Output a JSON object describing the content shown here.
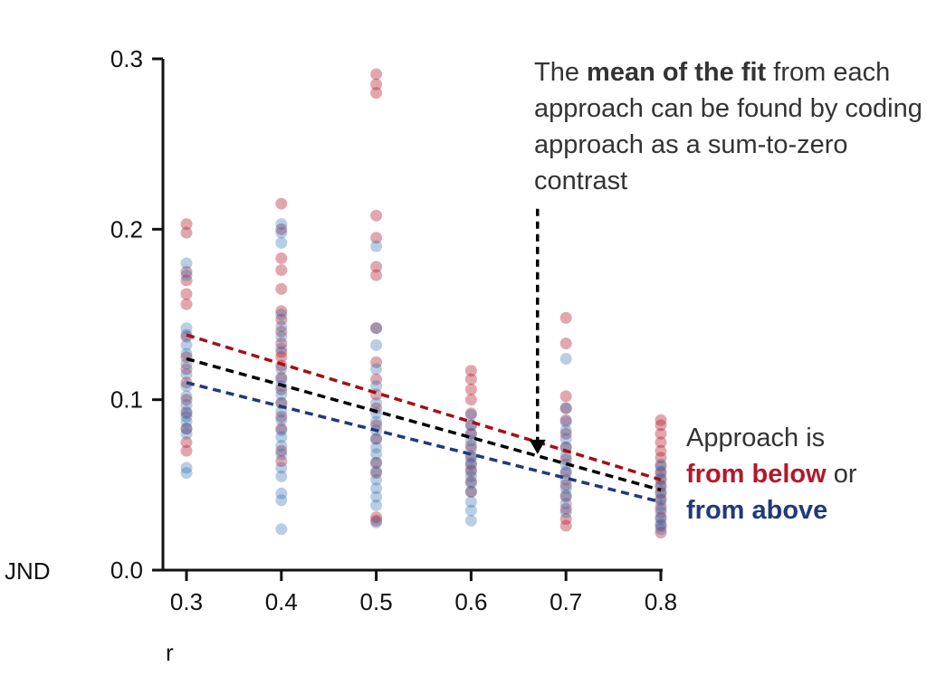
{
  "chart_data": {
    "type": "scatter",
    "xlabel": "r",
    "ylabel": "JND",
    "xlim": [
      0.3,
      0.8
    ],
    "ylim": [
      0,
      0.3
    ],
    "x_ticks": [
      0.3,
      0.4,
      0.5,
      0.6,
      0.7,
      0.8
    ],
    "x_tick_labels": [
      "0.3",
      "0.4",
      "0.5",
      "0.6",
      "0.7",
      "0.8"
    ],
    "y_ticks": [
      0,
      0.1,
      0.2,
      0.3
    ],
    "y_tick_labels": [
      "0.0",
      "0.1",
      "0.2",
      "0.3"
    ],
    "grid": false,
    "series": [
      {
        "name": "from below",
        "color": "#b2182b",
        "points": [
          {
            "x": 0.3,
            "y": 0.203
          },
          {
            "x": 0.3,
            "y": 0.198
          },
          {
            "x": 0.3,
            "y": 0.175
          },
          {
            "x": 0.3,
            "y": 0.17
          },
          {
            "x": 0.3,
            "y": 0.162
          },
          {
            "x": 0.3,
            "y": 0.156
          },
          {
            "x": 0.3,
            "y": 0.137
          },
          {
            "x": 0.3,
            "y": 0.125
          },
          {
            "x": 0.3,
            "y": 0.118
          },
          {
            "x": 0.3,
            "y": 0.11
          },
          {
            "x": 0.3,
            "y": 0.1
          },
          {
            "x": 0.3,
            "y": 0.092
          },
          {
            "x": 0.3,
            "y": 0.083
          },
          {
            "x": 0.3,
            "y": 0.075
          },
          {
            "x": 0.3,
            "y": 0.07
          },
          {
            "x": 0.4,
            "y": 0.215
          },
          {
            "x": 0.4,
            "y": 0.2
          },
          {
            "x": 0.4,
            "y": 0.183
          },
          {
            "x": 0.4,
            "y": 0.176
          },
          {
            "x": 0.4,
            "y": 0.165
          },
          {
            "x": 0.4,
            "y": 0.152
          },
          {
            "x": 0.4,
            "y": 0.147
          },
          {
            "x": 0.4,
            "y": 0.14
          },
          {
            "x": 0.4,
            "y": 0.133
          },
          {
            "x": 0.4,
            "y": 0.128
          },
          {
            "x": 0.4,
            "y": 0.125
          },
          {
            "x": 0.4,
            "y": 0.12
          },
          {
            "x": 0.4,
            "y": 0.113
          },
          {
            "x": 0.4,
            "y": 0.106
          },
          {
            "x": 0.4,
            "y": 0.098
          },
          {
            "x": 0.4,
            "y": 0.09
          },
          {
            "x": 0.4,
            "y": 0.083
          },
          {
            "x": 0.4,
            "y": 0.07
          },
          {
            "x": 0.4,
            "y": 0.064
          },
          {
            "x": 0.5,
            "y": 0.291
          },
          {
            "x": 0.5,
            "y": 0.285
          },
          {
            "x": 0.5,
            "y": 0.28
          },
          {
            "x": 0.5,
            "y": 0.208
          },
          {
            "x": 0.5,
            "y": 0.195
          },
          {
            "x": 0.5,
            "y": 0.178
          },
          {
            "x": 0.5,
            "y": 0.173
          },
          {
            "x": 0.5,
            "y": 0.142
          },
          {
            "x": 0.5,
            "y": 0.122
          },
          {
            "x": 0.5,
            "y": 0.112
          },
          {
            "x": 0.5,
            "y": 0.103
          },
          {
            "x": 0.5,
            "y": 0.095
          },
          {
            "x": 0.5,
            "y": 0.085
          },
          {
            "x": 0.5,
            "y": 0.077
          },
          {
            "x": 0.5,
            "y": 0.063
          },
          {
            "x": 0.5,
            "y": 0.057
          },
          {
            "x": 0.5,
            "y": 0.031
          },
          {
            "x": 0.5,
            "y": 0.029
          },
          {
            "x": 0.6,
            "y": 0.117
          },
          {
            "x": 0.6,
            "y": 0.112
          },
          {
            "x": 0.6,
            "y": 0.106
          },
          {
            "x": 0.6,
            "y": 0.1
          },
          {
            "x": 0.6,
            "y": 0.092
          },
          {
            "x": 0.6,
            "y": 0.085
          },
          {
            "x": 0.6,
            "y": 0.08
          },
          {
            "x": 0.6,
            "y": 0.073
          },
          {
            "x": 0.6,
            "y": 0.067
          },
          {
            "x": 0.6,
            "y": 0.062
          },
          {
            "x": 0.6,
            "y": 0.058
          },
          {
            "x": 0.6,
            "y": 0.052
          },
          {
            "x": 0.6,
            "y": 0.046
          },
          {
            "x": 0.7,
            "y": 0.148
          },
          {
            "x": 0.7,
            "y": 0.133
          },
          {
            "x": 0.7,
            "y": 0.102
          },
          {
            "x": 0.7,
            "y": 0.095
          },
          {
            "x": 0.7,
            "y": 0.088
          },
          {
            "x": 0.7,
            "y": 0.08
          },
          {
            "x": 0.7,
            "y": 0.072
          },
          {
            "x": 0.7,
            "y": 0.065
          },
          {
            "x": 0.7,
            "y": 0.057
          },
          {
            "x": 0.7,
            "y": 0.05
          },
          {
            "x": 0.7,
            "y": 0.043
          },
          {
            "x": 0.7,
            "y": 0.036
          },
          {
            "x": 0.7,
            "y": 0.03
          },
          {
            "x": 0.7,
            "y": 0.026
          },
          {
            "x": 0.8,
            "y": 0.088
          },
          {
            "x": 0.8,
            "y": 0.085
          },
          {
            "x": 0.8,
            "y": 0.08
          },
          {
            "x": 0.8,
            "y": 0.075
          },
          {
            "x": 0.8,
            "y": 0.07
          },
          {
            "x": 0.8,
            "y": 0.066
          },
          {
            "x": 0.8,
            "y": 0.061
          },
          {
            "x": 0.8,
            "y": 0.057
          },
          {
            "x": 0.8,
            "y": 0.053
          },
          {
            "x": 0.8,
            "y": 0.049
          },
          {
            "x": 0.8,
            "y": 0.045
          },
          {
            "x": 0.8,
            "y": 0.041
          },
          {
            "x": 0.8,
            "y": 0.036
          },
          {
            "x": 0.8,
            "y": 0.031
          },
          {
            "x": 0.8,
            "y": 0.026
          },
          {
            "x": 0.8,
            "y": 0.022
          }
        ],
        "fit": [
          {
            "x": 0.3,
            "y": 0.138
          },
          {
            "x": 0.8,
            "y": 0.053
          }
        ]
      },
      {
        "name": "from above",
        "color": "#2166ac",
        "points": [
          {
            "x": 0.3,
            "y": 0.18
          },
          {
            "x": 0.3,
            "y": 0.173
          },
          {
            "x": 0.3,
            "y": 0.142
          },
          {
            "x": 0.3,
            "y": 0.138
          },
          {
            "x": 0.3,
            "y": 0.132
          },
          {
            "x": 0.3,
            "y": 0.127
          },
          {
            "x": 0.3,
            "y": 0.121
          },
          {
            "x": 0.3,
            "y": 0.115
          },
          {
            "x": 0.3,
            "y": 0.108
          },
          {
            "x": 0.3,
            "y": 0.102
          },
          {
            "x": 0.3,
            "y": 0.097
          },
          {
            "x": 0.3,
            "y": 0.093
          },
          {
            "x": 0.3,
            "y": 0.09
          },
          {
            "x": 0.3,
            "y": 0.087
          },
          {
            "x": 0.3,
            "y": 0.083
          },
          {
            "x": 0.3,
            "y": 0.08
          },
          {
            "x": 0.3,
            "y": 0.06
          },
          {
            "x": 0.3,
            "y": 0.057
          },
          {
            "x": 0.4,
            "y": 0.203
          },
          {
            "x": 0.4,
            "y": 0.198
          },
          {
            "x": 0.4,
            "y": 0.192
          },
          {
            "x": 0.4,
            "y": 0.15
          },
          {
            "x": 0.4,
            "y": 0.143
          },
          {
            "x": 0.4,
            "y": 0.137
          },
          {
            "x": 0.4,
            "y": 0.13
          },
          {
            "x": 0.4,
            "y": 0.118
          },
          {
            "x": 0.4,
            "y": 0.112
          },
          {
            "x": 0.4,
            "y": 0.108
          },
          {
            "x": 0.4,
            "y": 0.103
          },
          {
            "x": 0.4,
            "y": 0.098
          },
          {
            "x": 0.4,
            "y": 0.093
          },
          {
            "x": 0.4,
            "y": 0.088
          },
          {
            "x": 0.4,
            "y": 0.082
          },
          {
            "x": 0.4,
            "y": 0.078
          },
          {
            "x": 0.4,
            "y": 0.073
          },
          {
            "x": 0.4,
            "y": 0.068
          },
          {
            "x": 0.4,
            "y": 0.06
          },
          {
            "x": 0.4,
            "y": 0.055
          },
          {
            "x": 0.4,
            "y": 0.045
          },
          {
            "x": 0.4,
            "y": 0.041
          },
          {
            "x": 0.4,
            "y": 0.024
          },
          {
            "x": 0.5,
            "y": 0.19
          },
          {
            "x": 0.5,
            "y": 0.142
          },
          {
            "x": 0.5,
            "y": 0.132
          },
          {
            "x": 0.5,
            "y": 0.118
          },
          {
            "x": 0.5,
            "y": 0.108
          },
          {
            "x": 0.5,
            "y": 0.098
          },
          {
            "x": 0.5,
            "y": 0.092
          },
          {
            "x": 0.5,
            "y": 0.087
          },
          {
            "x": 0.5,
            "y": 0.082
          },
          {
            "x": 0.5,
            "y": 0.077
          },
          {
            "x": 0.5,
            "y": 0.072
          },
          {
            "x": 0.5,
            "y": 0.068
          },
          {
            "x": 0.5,
            "y": 0.063
          },
          {
            "x": 0.5,
            "y": 0.058
          },
          {
            "x": 0.5,
            "y": 0.053
          },
          {
            "x": 0.5,
            "y": 0.048
          },
          {
            "x": 0.5,
            "y": 0.043
          },
          {
            "x": 0.5,
            "y": 0.038
          },
          {
            "x": 0.5,
            "y": 0.028
          },
          {
            "x": 0.6,
            "y": 0.091
          },
          {
            "x": 0.6,
            "y": 0.085
          },
          {
            "x": 0.6,
            "y": 0.08
          },
          {
            "x": 0.6,
            "y": 0.076
          },
          {
            "x": 0.6,
            "y": 0.071
          },
          {
            "x": 0.6,
            "y": 0.066
          },
          {
            "x": 0.6,
            "y": 0.063
          },
          {
            "x": 0.6,
            "y": 0.059
          },
          {
            "x": 0.6,
            "y": 0.055
          },
          {
            "x": 0.6,
            "y": 0.051
          },
          {
            "x": 0.6,
            "y": 0.046
          },
          {
            "x": 0.6,
            "y": 0.04
          },
          {
            "x": 0.6,
            "y": 0.035
          },
          {
            "x": 0.6,
            "y": 0.029
          },
          {
            "x": 0.7,
            "y": 0.124
          },
          {
            "x": 0.7,
            "y": 0.095
          },
          {
            "x": 0.7,
            "y": 0.087
          },
          {
            "x": 0.7,
            "y": 0.082
          },
          {
            "x": 0.7,
            "y": 0.077
          },
          {
            "x": 0.7,
            "y": 0.072
          },
          {
            "x": 0.7,
            "y": 0.067
          },
          {
            "x": 0.7,
            "y": 0.062
          },
          {
            "x": 0.7,
            "y": 0.058
          },
          {
            "x": 0.7,
            "y": 0.053
          },
          {
            "x": 0.7,
            "y": 0.048
          },
          {
            "x": 0.7,
            "y": 0.044
          },
          {
            "x": 0.7,
            "y": 0.039
          },
          {
            "x": 0.7,
            "y": 0.034
          },
          {
            "x": 0.8,
            "y": 0.062
          },
          {
            "x": 0.8,
            "y": 0.058
          },
          {
            "x": 0.8,
            "y": 0.054
          },
          {
            "x": 0.8,
            "y": 0.05
          },
          {
            "x": 0.8,
            "y": 0.046
          },
          {
            "x": 0.8,
            "y": 0.042
          },
          {
            "x": 0.8,
            "y": 0.038
          },
          {
            "x": 0.8,
            "y": 0.034
          },
          {
            "x": 0.8,
            "y": 0.03
          },
          {
            "x": 0.8,
            "y": 0.027
          },
          {
            "x": 0.8,
            "y": 0.024
          }
        ],
        "fit": [
          {
            "x": 0.3,
            "y": 0.11
          },
          {
            "x": 0.8,
            "y": 0.04
          }
        ]
      }
    ],
    "mean_fit": {
      "color": "#000000",
      "points": [
        {
          "x": 0.3,
          "y": 0.124
        },
        {
          "x": 0.8,
          "y": 0.047
        }
      ]
    },
    "arrow": {
      "from": {
        "x": 0.67,
        "y": 0.212
      },
      "to": {
        "x": 0.67,
        "y": 0.068
      }
    },
    "annotations": {
      "top": {
        "prefix": "The ",
        "bold": "mean of the fit",
        "suffix": " from each approach can be found by coding approach as a sum-to-zero contrast"
      },
      "right": {
        "line1": "Approach is",
        "below_text": "from below",
        "below_color": "#b2182b",
        "or_text": " or",
        "above_text": "from above",
        "above_color": "#1f3a7a"
      }
    }
  }
}
